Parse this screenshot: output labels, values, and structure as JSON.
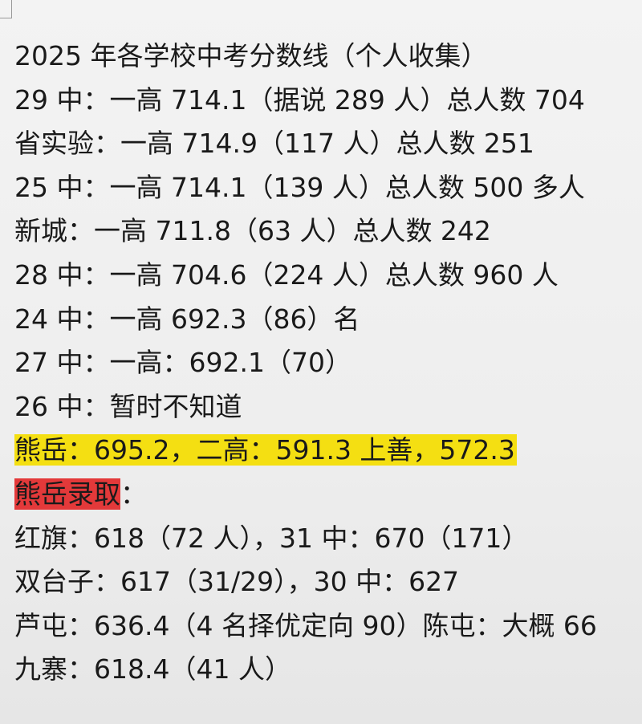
{
  "title": "2025 年各学校中考分数线（个人收集）",
  "lines": [
    "29 中：一高 714.1（据说 289 人）总人数 704",
    "省实验：一高 714.9（117 人）总人数 251",
    "25 中：一高 714.1（139 人）总人数 500 多人",
    "新城：一高 711.8（63 人）总人数 242",
    "28 中：一高 704.6（224 人）总人数 960 人",
    "24 中：一高 692.3（86）名",
    "27 中：一高：692.1（70）",
    "26 中：暂时不知道"
  ],
  "highlight_line": "熊岳：695.2，二高：591.3 上善，572.3",
  "admission": {
    "label": "熊岳录取",
    "suffix": "："
  },
  "admission_lines": [
    "红旗：618（72 人），31 中：670（171）",
    "双台子：617（31/29），30 中：627",
    "芦屯：636.4（4 名择优定向 90）陈屯：大概 66",
    "九寨：618.4（41 人）"
  ]
}
